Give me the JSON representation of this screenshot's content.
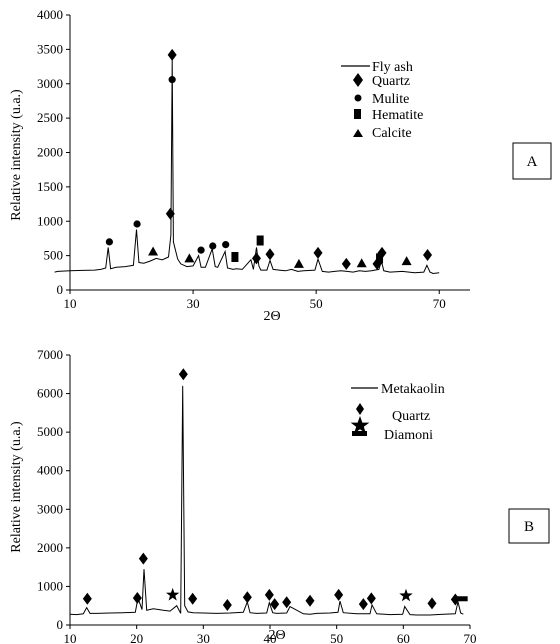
{
  "chart_data": [
    {
      "type": "line",
      "panel_label": "A",
      "xlabel": "2Θ",
      "ylabel": "Relative intensity (u.a.)",
      "xlim": [
        10,
        75
      ],
      "ylim": [
        0,
        4000
      ],
      "x_ticks": [
        10,
        30,
        50,
        70
      ],
      "y_ticks": [
        0,
        500,
        1000,
        1500,
        2000,
        2500,
        3000,
        3500,
        4000
      ],
      "series": [
        {
          "name": "Fly ash",
          "x": [
            7.5,
            8,
            10,
            12,
            14,
            15,
            15.8,
            16.2,
            16.6,
            17.5,
            19,
            20.3,
            20.8,
            21.2,
            22,
            23,
            24,
            25,
            26,
            26.4,
            26.6,
            26.8,
            27.5,
            28,
            29,
            30,
            30.9,
            31.3,
            32,
            33.1,
            33.6,
            34,
            35.2,
            35.6,
            36.5,
            37,
            38,
            39.4,
            39.8,
            40.3,
            40.7,
            41,
            42,
            42.5,
            43,
            44,
            45,
            46,
            47,
            48,
            49.8,
            50.3,
            51,
            52,
            53,
            54,
            55,
            56,
            57,
            58,
            59,
            60.2,
            60.6,
            61,
            62,
            64,
            66,
            67.5,
            68,
            68.5,
            69,
            70
          ],
          "y": [
            260,
            270,
            280,
            285,
            290,
            300,
            320,
            620,
            310,
            330,
            340,
            360,
            880,
            400,
            390,
            420,
            460,
            440,
            480,
            800,
            3350,
            700,
            450,
            380,
            340,
            350,
            500,
            330,
            330,
            600,
            340,
            330,
            560,
            320,
            300,
            310,
            300,
            440,
            300,
            620,
            350,
            290,
            290,
            430,
            300,
            290,
            280,
            300,
            270,
            280,
            290,
            450,
            270,
            260,
            270,
            280,
            270,
            260,
            280,
            270,
            280,
            300,
            420,
            280,
            260,
            270,
            250,
            260,
            360,
            260,
            240,
            250
          ]
        }
      ],
      "markers": {
        "Quartz": [
          [
            26.6,
            3420
          ],
          [
            26.3,
            1110
          ],
          [
            40.3,
            460
          ],
          [
            42.5,
            520
          ],
          [
            50.3,
            540
          ],
          [
            54.9,
            380
          ],
          [
            59.9,
            380
          ],
          [
            60.7,
            540
          ],
          [
            68.1,
            510
          ]
        ],
        "Mulite": [
          [
            16.4,
            700
          ],
          [
            20.9,
            960
          ],
          [
            26.6,
            3060
          ],
          [
            31.3,
            580
          ],
          [
            33.2,
            640
          ],
          [
            35.3,
            660
          ]
        ],
        "Hematite": [
          [
            36.8,
            480
          ],
          [
            40.9,
            720
          ],
          [
            60.3,
            460
          ]
        ],
        "Calcite": [
          [
            23.5,
            560
          ],
          [
            29.4,
            460
          ],
          [
            47.2,
            380
          ],
          [
            57.4,
            390
          ],
          [
            64.7,
            420
          ]
        ]
      },
      "legend": [
        "Fly ash",
        "Quartz",
        "Mulite",
        "Hematite",
        "Calcite"
      ],
      "legend_position": "top-right",
      "grid": false
    },
    {
      "type": "line",
      "panel_label": "B",
      "xlabel": "2Θ",
      "ylabel": "Relative intensity (u.a.)",
      "xlim": [
        10,
        70
      ],
      "ylim": [
        0,
        7000
      ],
      "x_ticks": [
        10,
        20,
        30,
        40,
        50,
        60,
        70
      ],
      "y_ticks": [
        0,
        1000,
        2000,
        3000,
        4000,
        5000,
        6000,
        7000
      ],
      "series": [
        {
          "name": "Metakaolin",
          "x": [
            10,
            11,
            12,
            12.5,
            13,
            14,
            16,
            18,
            19.8,
            20.2,
            20.8,
            21.1,
            21.5,
            22.5,
            24,
            25,
            26,
            26.6,
            26.9,
            27.2,
            27.7,
            28.5,
            30,
            32,
            34,
            36,
            36.6,
            37,
            38,
            39.5,
            39.9,
            40.4,
            41,
            42.5,
            43,
            45,
            46,
            47,
            49,
            50.2,
            50.5,
            51,
            53,
            55,
            55.3,
            56,
            58,
            59.9,
            60.2,
            61,
            62,
            64,
            66,
            67.8,
            68.2,
            68.6,
            69
          ],
          "y": [
            280,
            270,
            290,
            450,
            300,
            300,
            310,
            320,
            330,
            700,
            400,
            1450,
            380,
            420,
            380,
            360,
            500,
            300,
            6200,
            500,
            340,
            320,
            310,
            300,
            310,
            330,
            600,
            320,
            300,
            310,
            580,
            320,
            300,
            310,
            480,
            290,
            280,
            300,
            310,
            330,
            620,
            320,
            290,
            290,
            520,
            290,
            270,
            280,
            480,
            270,
            260,
            260,
            280,
            290,
            600,
            310,
            280
          ]
        }
      ],
      "markers": {
        "Quartz_diamond": [
          [
            12.6,
            680
          ],
          [
            20.1,
            700
          ],
          [
            21,
            1720
          ],
          [
            27,
            6500
          ],
          [
            28.4,
            680
          ],
          [
            33.6,
            520
          ],
          [
            36.6,
            720
          ],
          [
            39.9,
            780
          ],
          [
            40.7,
            540
          ],
          [
            42.5,
            590
          ],
          [
            46,
            630
          ],
          [
            50.3,
            780
          ],
          [
            54,
            540
          ],
          [
            55.2,
            690
          ],
          [
            64.3,
            560
          ],
          [
            67.8,
            660
          ]
        ],
        "Quartz_star": [
          [
            25.4,
            780
          ],
          [
            60.4,
            760
          ]
        ],
        "Diamoni": [
          [
            68.6,
            680
          ]
        ]
      },
      "legend": [
        "Metakaolin",
        "Quartz",
        "Diamoni"
      ],
      "legend_position": "top-right",
      "grid": false
    }
  ]
}
